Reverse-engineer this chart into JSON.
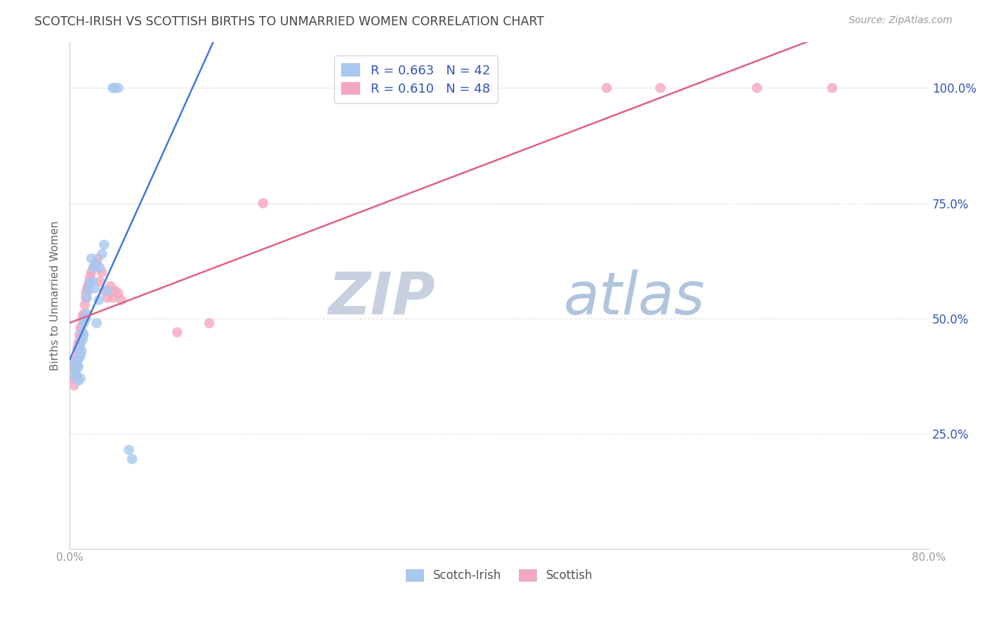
{
  "title": "SCOTCH-IRISH VS SCOTTISH BIRTHS TO UNMARRIED WOMEN CORRELATION CHART",
  "source": "Source: ZipAtlas.com",
  "ylabel": "Births to Unmarried Women",
  "xlim": [
    0.0,
    0.8
  ],
  "ylim": [
    0.0,
    1.1
  ],
  "ytick_vals": [
    0.25,
    0.5,
    0.75,
    1.0
  ],
  "xtick_vals": [
    0.0,
    0.8
  ],
  "xtick_labels": [
    "0.0%",
    "80.0%"
  ],
  "scotch_irish_R": 0.663,
  "scotch_irish_N": 42,
  "scottish_R": 0.61,
  "scottish_N": 48,
  "blue_color": "#A8C8F0",
  "pink_color": "#F4A8C0",
  "blue_line_color": "#4477DD",
  "pink_line_color": "#E06080",
  "legend_text_color": "#3355BB",
  "watermark_zip_color": "#C8D4E8",
  "watermark_atlas_color": "#B8CCE8",
  "grid_color": "#E0E0E8",
  "title_color": "#444444",
  "source_color": "#999999",
  "scotch_irish_x": [
    0.004,
    0.005,
    0.005,
    0.006,
    0.006,
    0.007,
    0.007,
    0.007,
    0.008,
    0.008,
    0.009,
    0.009,
    0.01,
    0.01,
    0.01,
    0.011,
    0.012,
    0.012,
    0.013,
    0.013,
    0.014,
    0.015,
    0.016,
    0.016,
    0.017,
    0.018,
    0.02,
    0.021,
    0.022,
    0.023,
    0.024,
    0.025,
    0.027,
    0.028,
    0.03,
    0.032,
    0.035,
    0.04,
    0.042,
    0.045,
    0.055,
    0.058
  ],
  "scotch_irish_y": [
    0.395,
    0.375,
    0.405,
    0.39,
    0.38,
    0.4,
    0.37,
    0.41,
    0.365,
    0.395,
    0.43,
    0.415,
    0.37,
    0.445,
    0.42,
    0.43,
    0.47,
    0.455,
    0.49,
    0.465,
    0.5,
    0.5,
    0.51,
    0.545,
    0.56,
    0.575,
    0.63,
    0.58,
    0.61,
    0.565,
    0.62,
    0.49,
    0.54,
    0.61,
    0.64,
    0.66,
    0.56,
    1.0,
    1.0,
    1.0,
    0.215,
    0.195
  ],
  "scottish_x": [
    0.003,
    0.004,
    0.004,
    0.005,
    0.005,
    0.006,
    0.006,
    0.007,
    0.007,
    0.008,
    0.008,
    0.009,
    0.009,
    0.01,
    0.01,
    0.011,
    0.012,
    0.012,
    0.013,
    0.014,
    0.015,
    0.015,
    0.016,
    0.017,
    0.018,
    0.019,
    0.02,
    0.022,
    0.024,
    0.025,
    0.026,
    0.028,
    0.03,
    0.032,
    0.035,
    0.038,
    0.04,
    0.042,
    0.045,
    0.048,
    0.1,
    0.13,
    0.18,
    0.39,
    0.5,
    0.55,
    0.64,
    0.71
  ],
  "scottish_y": [
    0.395,
    0.37,
    0.355,
    0.385,
    0.41,
    0.375,
    0.4,
    0.415,
    0.435,
    0.43,
    0.445,
    0.45,
    0.465,
    0.46,
    0.48,
    0.475,
    0.495,
    0.505,
    0.51,
    0.53,
    0.545,
    0.555,
    0.565,
    0.57,
    0.58,
    0.59,
    0.6,
    0.61,
    0.615,
    0.62,
    0.63,
    0.58,
    0.6,
    0.56,
    0.545,
    0.57,
    0.545,
    0.56,
    0.555,
    0.54,
    0.47,
    0.49,
    0.75,
    1.0,
    1.0,
    1.0,
    1.0,
    1.0
  ]
}
